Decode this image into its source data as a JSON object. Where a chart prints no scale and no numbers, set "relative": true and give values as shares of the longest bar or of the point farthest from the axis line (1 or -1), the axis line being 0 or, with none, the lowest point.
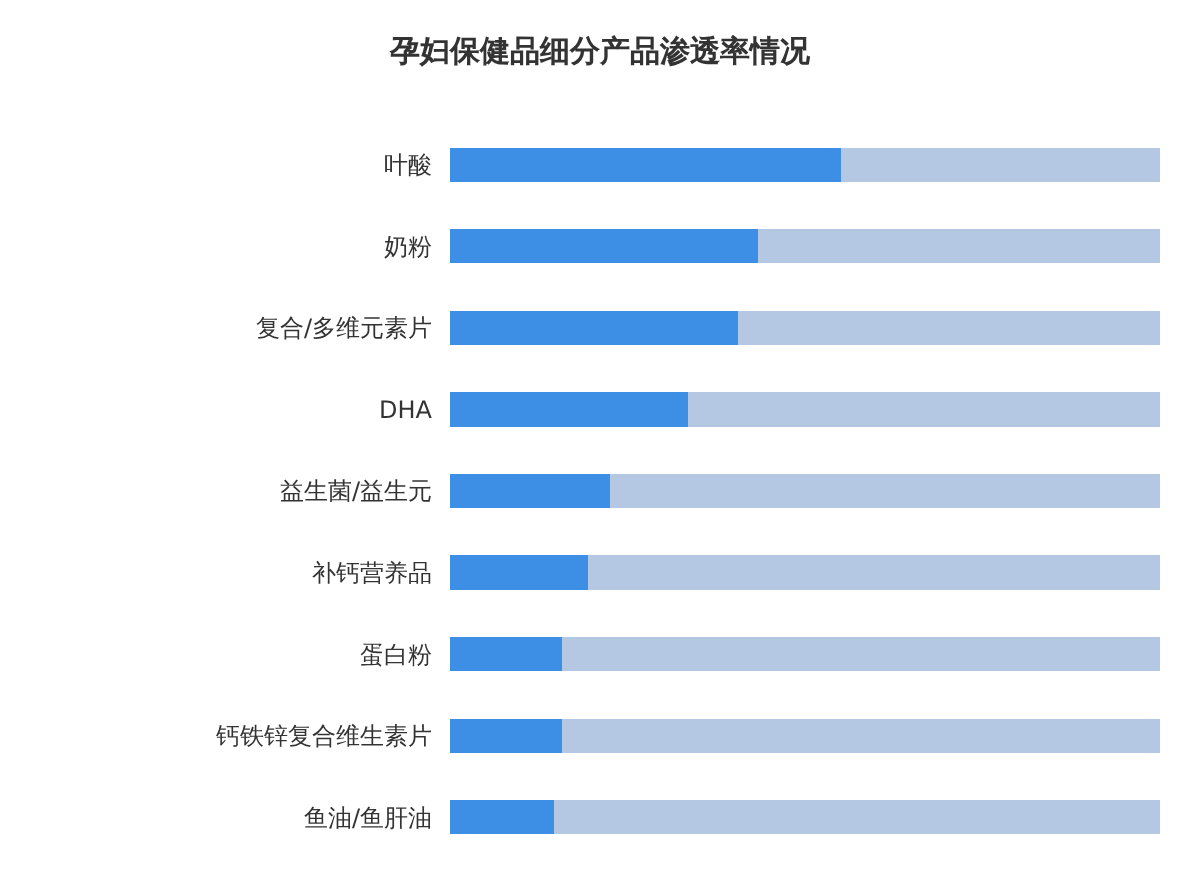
{
  "chart_data": {
    "type": "bar",
    "orientation": "horizontal",
    "stacked": true,
    "relative": true,
    "title": "孕妇保健品细分产品渗透率情况",
    "categories": [
      "叶酸",
      "奶粉",
      "复合/多维元素片",
      "DHA",
      "益生菌/益生元",
      "补钙营养品",
      "蛋白粉",
      "钙铁锌复合维生素片",
      "鱼油/鱼肝油"
    ],
    "series": [
      {
        "color": "#3d8fe6",
        "values": [
          0.55,
          0.434,
          0.406,
          0.335,
          0.225,
          0.194,
          0.158,
          0.158,
          0.146
        ]
      },
      {
        "color": "#b4c8e4",
        "values": [
          0.45,
          0.566,
          0.594,
          0.665,
          0.775,
          0.806,
          0.842,
          0.842,
          0.854
        ]
      }
    ],
    "tick_labels": "y"
  }
}
